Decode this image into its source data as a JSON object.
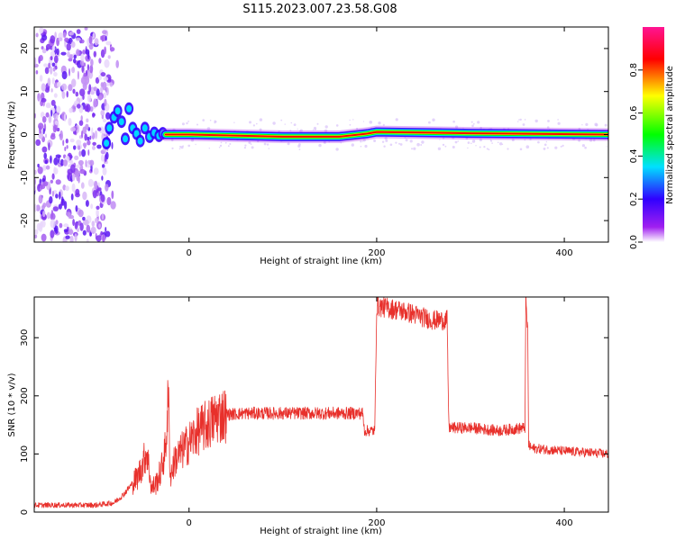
{
  "title": "S115.2023.007.23.58.G08",
  "colors": {
    "snr_line": "#e8302b",
    "spectrum_background": "#ffffff",
    "colormap": [
      "#ffffff",
      "#a020f0",
      "#3000ff",
      "#00e0ff",
      "#00ff00",
      "#ffff00",
      "#ff0000",
      "#ff1493"
    ]
  },
  "chart_data": [
    {
      "type": "heatmap",
      "xlabel": "Height of straight line (km)",
      "ylabel": "Frequency (Hz)",
      "xlim": [
        -165,
        447
      ],
      "ylim": [
        -25,
        25
      ],
      "x_ticks": [
        0,
        200,
        400
      ],
      "y_ticks": [
        -20,
        -10,
        0,
        10,
        20
      ],
      "colorbar": {
        "label": "Normalized spectral amplitude",
        "range": [
          0,
          1
        ],
        "ticks": [
          "0.0",
          "0.2",
          "0.4",
          "0.6",
          "0.8"
        ]
      },
      "ridge": [
        {
          "x": -90,
          "y": -3
        },
        {
          "x": -80,
          "y": 3
        },
        {
          "x": -70,
          "y": 5
        },
        {
          "x": -60,
          "y": 2
        },
        {
          "x": -50,
          "y": 1
        },
        {
          "x": -40,
          "y": 0.5
        },
        {
          "x": -25,
          "y": 0
        },
        {
          "x": 0,
          "y": 0
        },
        {
          "x": 100,
          "y": -0.5
        },
        {
          "x": 160,
          "y": -0.5
        },
        {
          "x": 190,
          "y": 0.2
        },
        {
          "x": 200,
          "y": 0.6
        },
        {
          "x": 300,
          "y": 0.3
        },
        {
          "x": 447,
          "y": 0
        }
      ]
    },
    {
      "type": "line",
      "xlabel": "Height of straight line (km)",
      "ylabel": "SNR (10 * v/v)",
      "xlim": [
        -165,
        447
      ],
      "ylim": [
        0,
        370
      ],
      "x_ticks": [
        0,
        200,
        400
      ],
      "y_ticks": [
        0,
        100,
        200,
        300
      ],
      "series": [
        {
          "x": [
            -165,
            -100,
            -80,
            -70,
            -60,
            -55,
            -50,
            -45,
            -40,
            -35,
            -30,
            -25,
            -22,
            -20,
            -15,
            -10,
            0,
            10,
            20,
            30,
            40,
            60,
            100,
            150,
            185,
            187,
            198,
            200,
            230,
            260,
            275,
            277,
            300,
            330,
            358,
            359,
            361,
            362,
            365,
            400,
            447
          ],
          "y": [
            12,
            12,
            16,
            30,
            50,
            60,
            80,
            105,
            40,
            50,
            70,
            110,
            200,
            60,
            90,
            100,
            120,
            140,
            150,
            165,
            168,
            170,
            170,
            170,
            170,
            140,
            140,
            355,
            345,
            330,
            330,
            145,
            145,
            140,
            145,
            360,
            310,
            115,
            110,
            105,
            100
          ]
        }
      ]
    }
  ]
}
